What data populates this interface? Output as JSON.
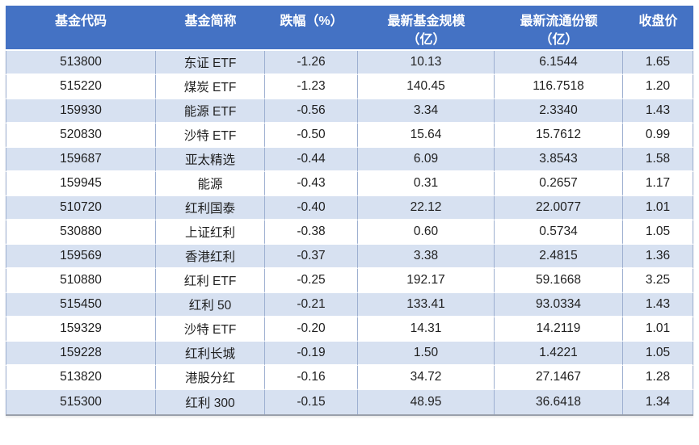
{
  "colors": {
    "header_bg": "#4472C4",
    "header_text": "#FFFFFF",
    "row_alternate_bg": "#D7E1F1",
    "row_bg": "#FFFFFF",
    "grid_line": "#9DAFD0",
    "text": "#1F1F1F"
  },
  "chart_data": {
    "type": "table",
    "columns": [
      "基金代码",
      "基金简称",
      "跌幅（%）",
      "最新基金规模\n（亿）",
      "最新流通份额\n（亿）",
      "收盘价"
    ],
    "rows": [
      [
        "513800",
        "东证 ETF",
        "-1.26",
        "10.13",
        "6.1544",
        "1.65"
      ],
      [
        "515220",
        "煤炭 ETF",
        "-1.23",
        "140.45",
        "116.7518",
        "1.20"
      ],
      [
        "159930",
        "能源 ETF",
        "-0.56",
        "3.34",
        "2.3340",
        "1.43"
      ],
      [
        "520830",
        "沙特 ETF",
        "-0.50",
        "15.64",
        "15.7612",
        "0.99"
      ],
      [
        "159687",
        "亚太精选",
        "-0.44",
        "6.09",
        "3.8543",
        "1.58"
      ],
      [
        "159945",
        "能源",
        "-0.43",
        "0.31",
        "0.2657",
        "1.17"
      ],
      [
        "510720",
        "红利国泰",
        "-0.40",
        "22.12",
        "22.0077",
        "1.01"
      ],
      [
        "530880",
        "上证红利",
        "-0.38",
        "0.60",
        "0.5734",
        "1.05"
      ],
      [
        "159569",
        "香港红利",
        "-0.37",
        "3.38",
        "2.4815",
        "1.36"
      ],
      [
        "510880",
        "红利 ETF",
        "-0.25",
        "192.17",
        "59.1668",
        "3.25"
      ],
      [
        "515450",
        "红利 50",
        "-0.21",
        "133.41",
        "93.0334",
        "1.43"
      ],
      [
        "159329",
        "沙特 ETF",
        "-0.20",
        "14.31",
        "14.2119",
        "1.01"
      ],
      [
        "159228",
        "红利长城",
        "-0.19",
        "1.50",
        "1.4221",
        "1.05"
      ],
      [
        "513820",
        "港股分红",
        "-0.16",
        "34.72",
        "27.1467",
        "1.28"
      ],
      [
        "515300",
        "红利 300",
        "-0.15",
        "48.95",
        "36.6418",
        "1.34"
      ]
    ]
  }
}
